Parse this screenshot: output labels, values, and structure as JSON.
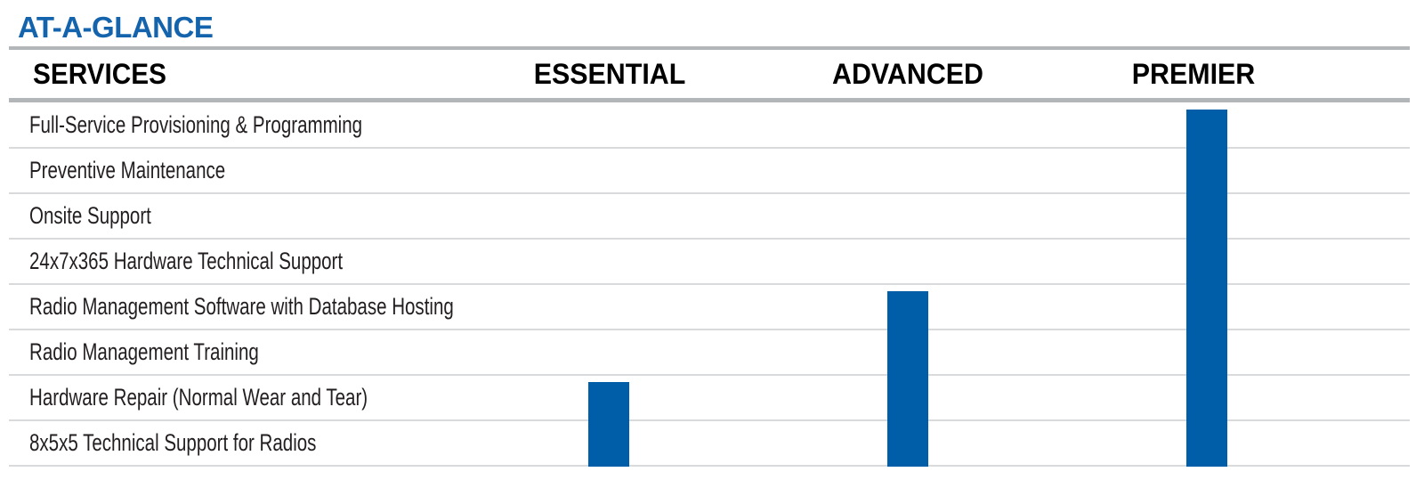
{
  "title": "AT-A-GLANCE",
  "colors": {
    "title_blue": "#1363ad",
    "bar_blue": "#005da8",
    "rule_gray": "#b3b6b9",
    "divider_gray": "#d9dadb",
    "text_dark": "#231f20"
  },
  "table": {
    "columns": [
      "SERVICES",
      "ESSENTIAL",
      "ADVANCED",
      "PREMIER"
    ]
  },
  "chart_data": {
    "type": "table",
    "title": "AT-A-GLANCE",
    "categories": [
      "Full-Service Provisioning & Programming",
      "Preventive Maintenance",
      "Onsite Support",
      "24x7x365 Hardware Technical Support",
      "Radio Management Software with Database Hosting",
      "Radio Management Training",
      "Hardware Repair (Normal Wear and Tear)",
      "8x5x5 Technical Support for Radios"
    ],
    "series": [
      {
        "name": "ESSENTIAL",
        "values": [
          0,
          0,
          0,
          0,
          0,
          0,
          1,
          1
        ]
      },
      {
        "name": "ADVANCED",
        "values": [
          0,
          0,
          0,
          0,
          1,
          1,
          1,
          1
        ]
      },
      {
        "name": "PREMIER",
        "values": [
          1,
          1,
          1,
          1,
          1,
          1,
          1,
          1
        ]
      }
    ],
    "value_meaning": "1 = service included in tier, shown as a solid blue bar spanning the included rows",
    "legend_position": "column headers"
  }
}
